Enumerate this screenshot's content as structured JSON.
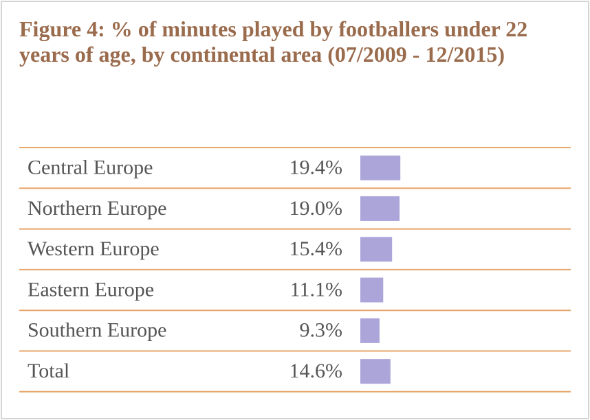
{
  "chart_data": {
    "type": "bar",
    "orientation": "horizontal",
    "title": "Figure 4: % of minutes played by footballers under 22 years of age, by continental area (07/2009 - 12/2015)",
    "categories": [
      "Central Europe",
      "Northern Europe",
      "Western Europe",
      "Eastern Europe",
      "Southern Europe",
      "Total"
    ],
    "values": [
      19.4,
      19.0,
      15.4,
      11.1,
      9.3,
      14.6
    ],
    "value_labels": [
      "19.4%",
      "19.0%",
      "15.4%",
      "11.1%",
      "9.3%",
      "14.6%"
    ],
    "color": "#aba5da"
  }
}
